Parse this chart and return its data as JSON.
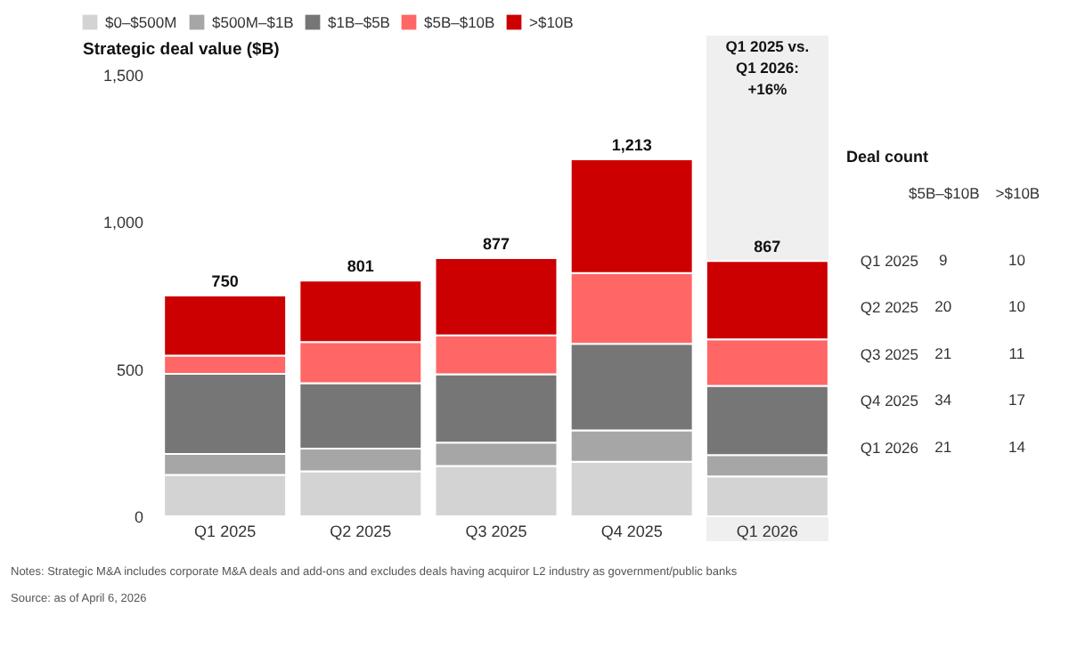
{
  "chart_data": [
    {
      "type": "bar",
      "stacked": true,
      "ylabel": "Strategic deal value ($B)",
      "categories": [
        "Q1 2025",
        "Q2 2025",
        "Q3 2025",
        "Q4 2025",
        "Q1 2026"
      ],
      "series": [
        {
          "name": "$0–$500M",
          "color": "#d3d3d3",
          "values": [
            141,
            153,
            171,
            185,
            135
          ]
        },
        {
          "name": "$500M–$1B",
          "color": "#a6a6a6",
          "values": [
            71,
            77,
            79,
            107,
            73
          ]
        },
        {
          "name": "$1B–$5B",
          "color": "#767676",
          "values": [
            272,
            222,
            232,
            294,
            235
          ]
        },
        {
          "name": "$5B–$10B",
          "color": "#ff6666",
          "values": [
            62,
            140,
            133,
            240,
            158
          ]
        },
        {
          "name": ">$10B",
          "color": "#cc0000",
          "values": [
            204,
            209,
            262,
            387,
            266
          ]
        }
      ],
      "totals": [
        "750",
        "801",
        "877",
        "1,213",
        "867"
      ],
      "ylim": [
        0,
        1500
      ],
      "yticks": [
        0,
        500,
        {
          "value": 1000,
          "label": "1,000"
        },
        {
          "value": 1500,
          "label": "1,500"
        }
      ],
      "legend": "top left",
      "bands": [
        {
          "axis": "x",
          "from": "Q1 2026",
          "to": "Q1 2026",
          "label": "Q1 2025 vs. Q1 2026: +16%",
          "color": "#efefef"
        }
      ],
      "annotations": [
        "Notes: Strategic M&A includes corporate M&A deals and add-ons and excludes deals having acquiror L2 industry as government/public banks",
        "Source: as of April 6, 2026"
      ]
    },
    {
      "type": "heatmap",
      "title": "Deal count",
      "data_labels": true,
      "categories": [
        "$5B–$10B",
        ">$10B"
      ],
      "y_categories": [
        "Q1 2025",
        "Q2 2025",
        "Q3 2025",
        "Q4 2025",
        "Q1 2026"
      ],
      "cells": [
        [
          9,
          10
        ],
        [
          20,
          10
        ],
        [
          21,
          11
        ],
        [
          34,
          17
        ],
        [
          21,
          14
        ]
      ]
    }
  ]
}
